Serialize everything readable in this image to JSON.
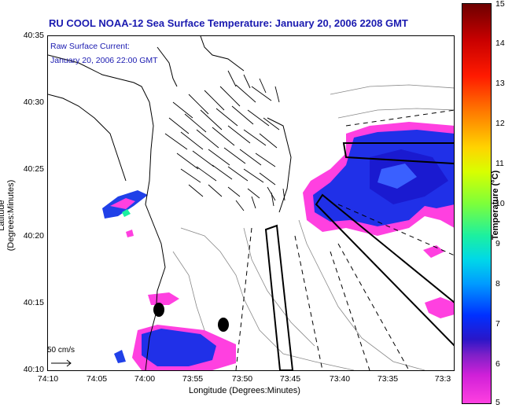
{
  "title": "RU COOL   NOAA-12  Sea Surface Temperature:  January 20, 2006 2208 GMT",
  "current_label": {
    "line1": "Raw Surface Current:",
    "line2": "January 20, 2006 22:00 GMT"
  },
  "scale_label": "50 cm/s",
  "x_axis": {
    "title": "Longitude (Degrees:Minutes)",
    "ticks": [
      "74:10",
      "74:05",
      "74:00",
      "73:55",
      "73:50",
      "73:45",
      "73:40",
      "73:35",
      "73:3"
    ]
  },
  "y_axis": {
    "title": "Latitude (Degrees:Minutes)",
    "ticks": [
      "40:35",
      "40:30",
      "40:25",
      "40:20",
      "40:15",
      "40:10"
    ]
  },
  "colorbar": {
    "title": "Temperature (°C)",
    "ticks": [
      "15",
      "14",
      "13",
      "12",
      "11",
      "10",
      "9",
      "8",
      "7",
      "6",
      "5"
    ],
    "min": 5,
    "max": 15
  },
  "colors": {
    "title": "#1a1ab0",
    "land_outline": "#000000",
    "bathymetry": "#888888"
  }
}
